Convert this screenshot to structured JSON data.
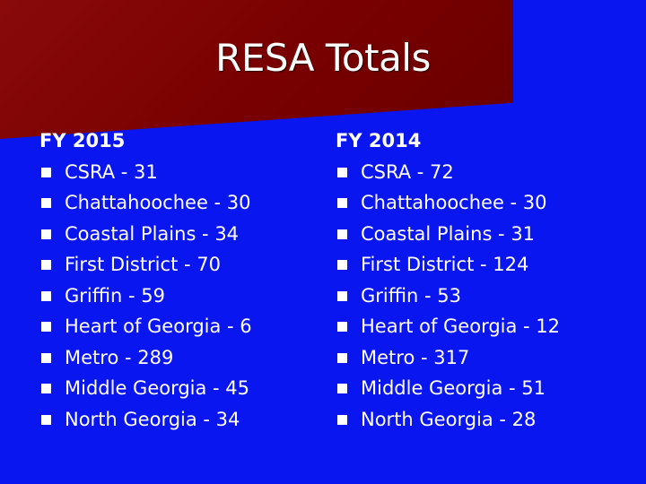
{
  "slide": {
    "title": "RESA Totals",
    "columns": [
      {
        "heading": "FY 2015",
        "items": [
          "CSRA - 31",
          "Chattahoochee - 30",
          "Coastal Plains - 34",
          "First District - 70",
          "Griffin - 59",
          "Heart of Georgia - 6",
          "Metro - 289",
          "Middle Georgia - 45",
          "North Georgia - 34"
        ]
      },
      {
        "heading": "FY 2014",
        "items": [
          "CSRA - 72",
          "Chattahoochee - 30",
          "Coastal Plains - 31",
          "First District - 124",
          "Griffin - 53",
          "Heart of Georgia - 12",
          "Metro - 317",
          "Middle Georgia - 51",
          "North Georgia - 28"
        ]
      }
    ]
  },
  "colors": {
    "background": "#0a16f0",
    "title_band": "#780000",
    "text": "#ffffff"
  },
  "icons": {
    "bullet": "square-bullet-icon"
  }
}
